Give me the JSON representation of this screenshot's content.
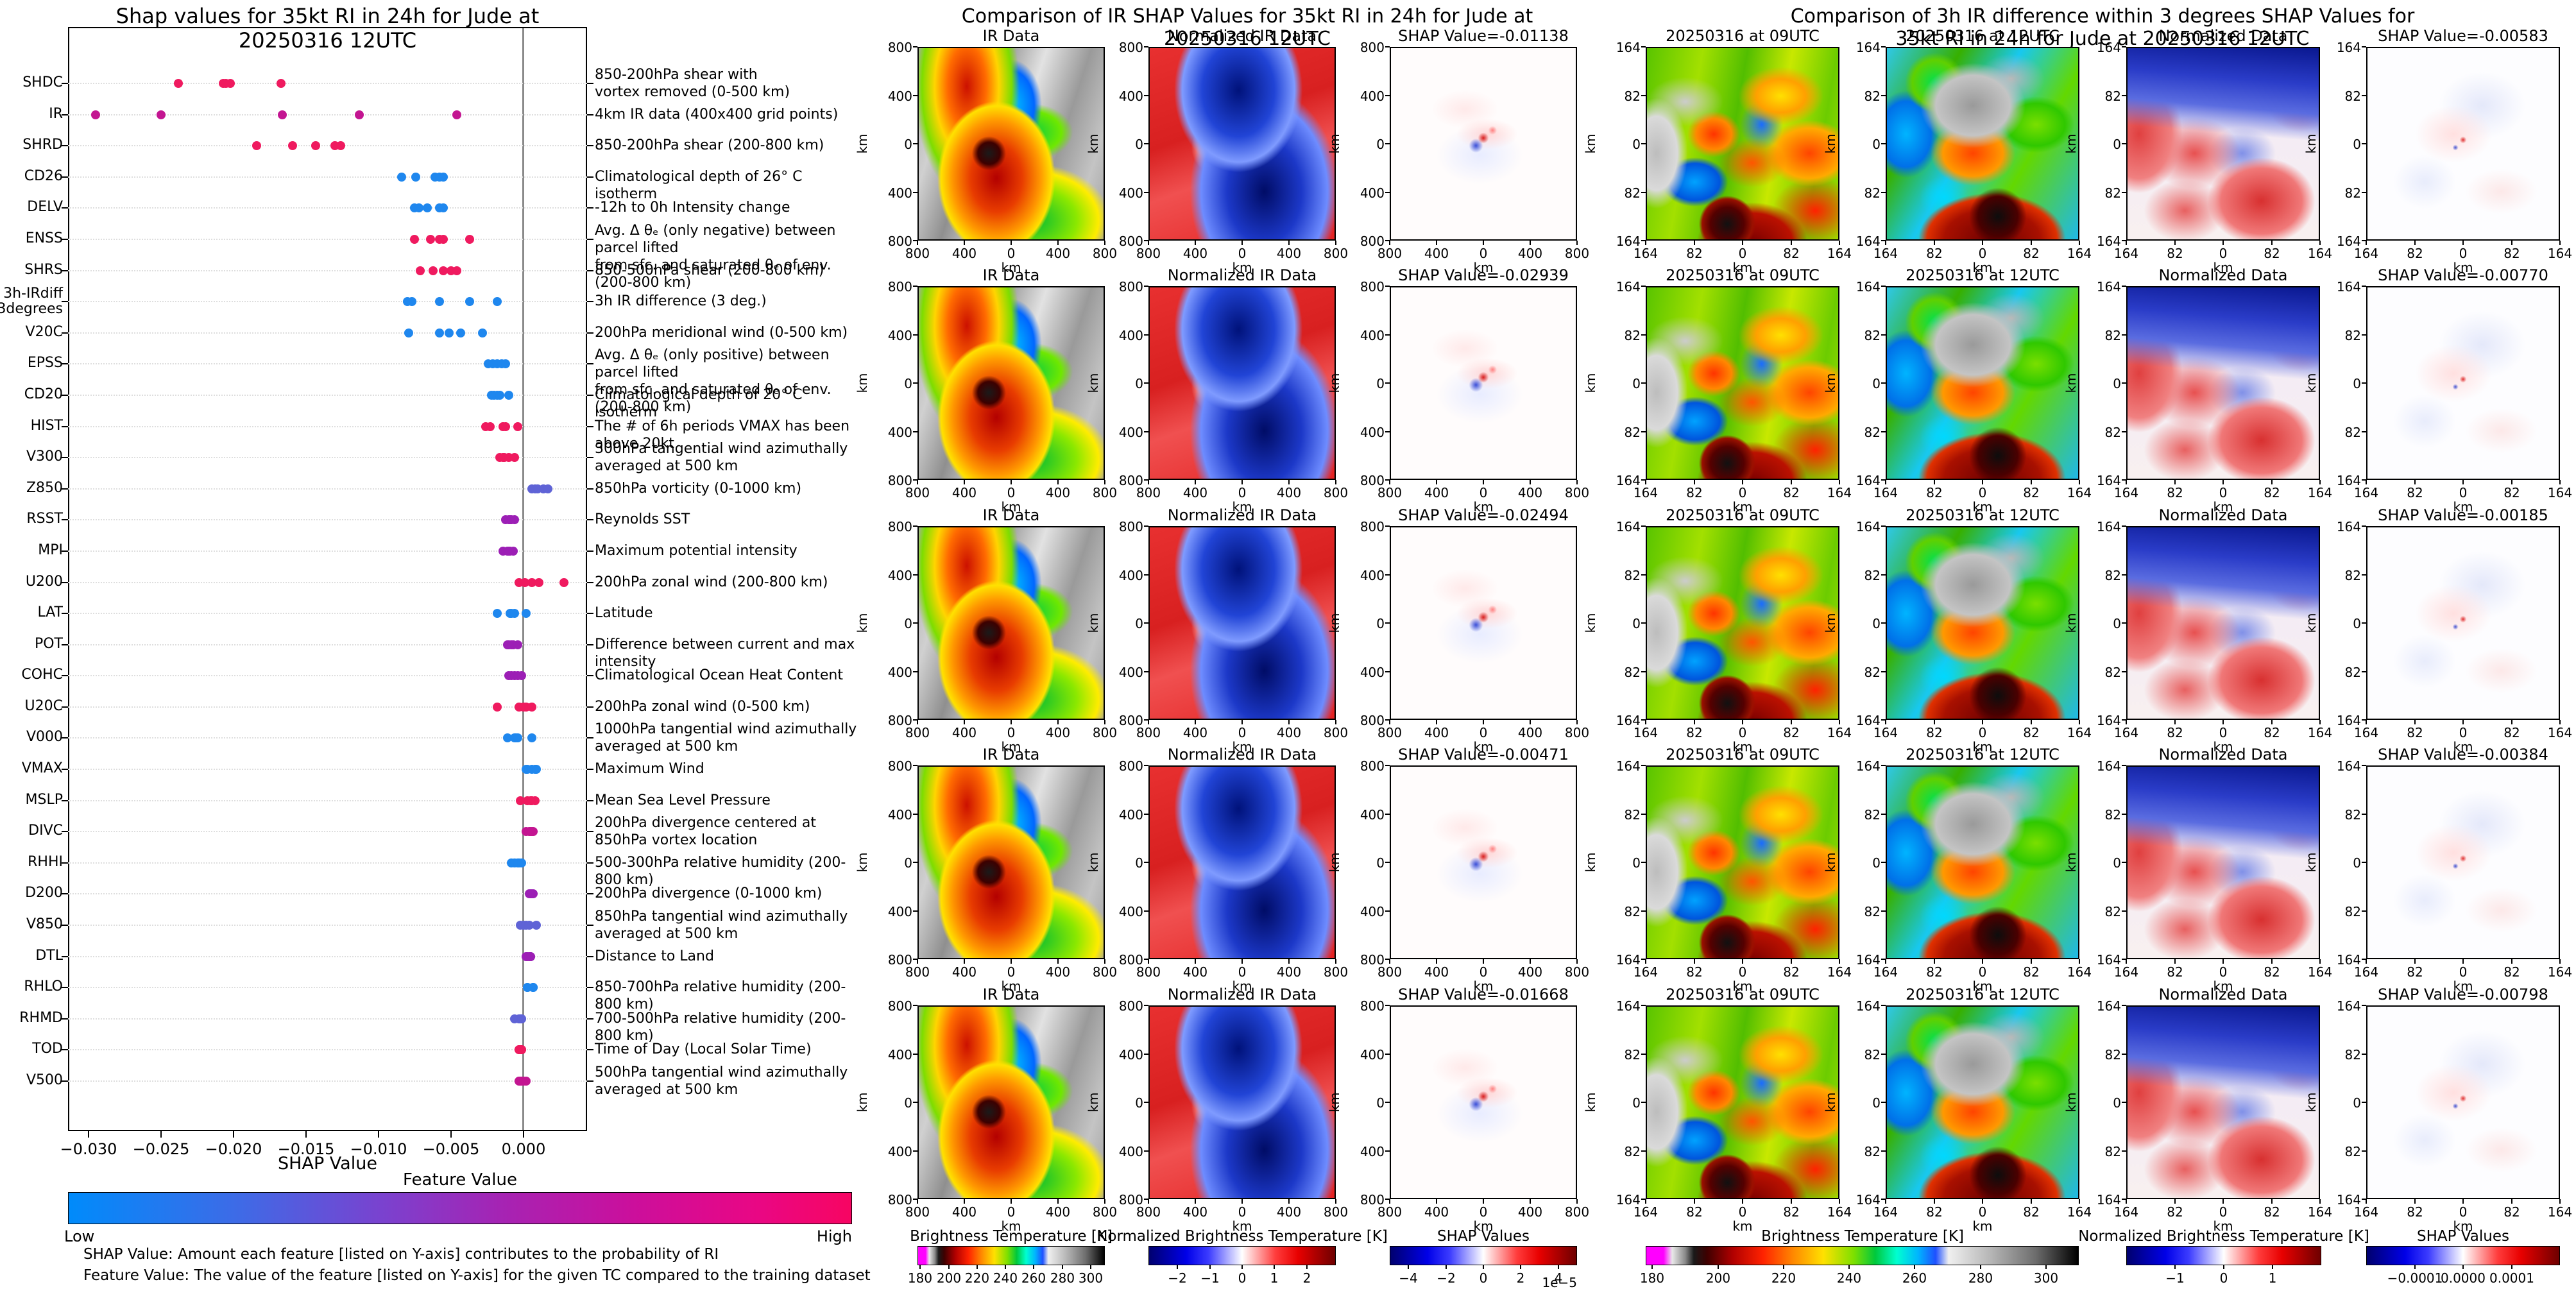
{
  "chart_data": {
    "type": "scatter",
    "title": "Shap values for 35kt RI in 24h for Jude at 20250316 12UTC",
    "xlabel": "SHAP Value",
    "xlim": [
      -0.0314,
      0.0044
    ],
    "x_ticks": [
      {
        "label": "−0.030",
        "value": -0.03
      },
      {
        "label": "−0.025",
        "value": -0.025
      },
      {
        "label": "−0.020",
        "value": -0.02
      },
      {
        "label": "−0.015",
        "value": -0.015
      },
      {
        "label": "−0.010",
        "value": -0.01
      },
      {
        "label": "−0.005",
        "value": -0.005
      },
      {
        "label": "0.000",
        "value": 0.0
      }
    ],
    "grid": "dotted-horizontal",
    "zero_line_color": "#8a8a8a",
    "features": [
      {
        "label": "SHDC",
        "desc": "850-200hPa shear with\nvortex removed (0-500 km)",
        "color": "#ef1a5f",
        "shap_values": [
          -0.0238,
          -0.0207,
          -0.0205,
          -0.0202,
          -0.0167
        ]
      },
      {
        "label": "IR",
        "desc": "4km IR data (400x400 grid points)",
        "color": "#c31591",
        "shap_values": [
          -0.0295,
          -0.025,
          -0.0166,
          -0.0113,
          -0.0046
        ]
      },
      {
        "label": "SHRD",
        "desc": "850-200hPa shear (200-800 km)",
        "color": "#ef1a5f",
        "shap_values": [
          -0.0184,
          -0.0159,
          -0.0143,
          -0.013,
          -0.0126
        ]
      },
      {
        "label": "CD26",
        "desc": "Climatological depth of 26° C isotherm",
        "color": "#1f87ee",
        "shap_values": [
          -0.0084,
          -0.0074,
          -0.0061,
          -0.0058,
          -0.0055
        ]
      },
      {
        "label": "DELV",
        "desc": "-12h to 0h Intensity change",
        "color": "#1f87ee",
        "shap_values": [
          -0.0075,
          -0.0072,
          -0.0066,
          -0.0058,
          -0.0055
        ]
      },
      {
        "label": "ENSS",
        "desc": "Avg. Δ θₑ (only negative) between parcel lifted\nfrom sfc. and saturated θₑ of env. (200-800 km)",
        "color": "#ef1a5f",
        "shap_values": [
          -0.0075,
          -0.0064,
          -0.0058,
          -0.0055,
          -0.0037
        ]
      },
      {
        "label": "SHRS",
        "desc": "850-500hPa shear (200-800 km)",
        "color": "#ef1a5f",
        "shap_values": [
          -0.0071,
          -0.0062,
          -0.0055,
          -0.005,
          -0.0046
        ]
      },
      {
        "label": "3h-IRdiff\n3degrees",
        "desc": "3h IR difference (3 deg.)",
        "color": "#1f87ee",
        "shap_values": [
          -0.008,
          -0.0077,
          -0.0058,
          -0.0037,
          -0.0018
        ]
      },
      {
        "label": "V20C",
        "desc": "200hPa meridional wind (0-500 km)",
        "color": "#1f87ee",
        "shap_values": [
          -0.0079,
          -0.0058,
          -0.0051,
          -0.0043,
          -0.0028
        ]
      },
      {
        "label": "EPSS",
        "desc": "Avg. Δ θₑ (only positive) between parcel lifted\nfrom sfc. and saturated θₑ of env. (200-800 km)",
        "color": "#1f87ee",
        "shap_values": [
          -0.0024,
          -0.0021,
          -0.0018,
          -0.0015,
          -0.0012
        ]
      },
      {
        "label": "CD20",
        "desc": "Climatological depth of 20° C isotherm",
        "color": "#1f87ee",
        "shap_values": [
          -0.0022,
          -0.002,
          -0.0018,
          -0.0016,
          -0.001
        ]
      },
      {
        "label": "HIST",
        "desc": "The # of 6h periods VMAX has been above 20kt",
        "color": "#ef1a5f",
        "shap_values": [
          -0.0026,
          -0.0023,
          -0.0014,
          -0.0012,
          -0.0004
        ]
      },
      {
        "label": "V300",
        "desc": "300hPa tangential wind azimuthally\naveraged at 500 km",
        "color": "#ef1a5f",
        "shap_values": [
          -0.0016,
          -0.0014,
          -0.0013,
          -0.001,
          -0.0006
        ]
      },
      {
        "label": "Z850",
        "desc": "850hPa vorticity (0-1000 km)",
        "color": "#5f63d6",
        "shap_values": [
          0.0006,
          0.0008,
          0.001,
          0.0014,
          0.0017
        ]
      },
      {
        "label": "RSST",
        "desc": "Reynolds SST",
        "color": "#9c1fb5",
        "shap_values": [
          -0.0012,
          -0.001,
          -0.0009,
          -0.0008,
          -0.0006
        ]
      },
      {
        "label": "MPI",
        "desc": "Maximum potential intensity",
        "color": "#9c1fb5",
        "shap_values": [
          -0.0014,
          -0.0011,
          -0.001,
          -0.0009,
          -0.0007
        ]
      },
      {
        "label": "U200",
        "desc": "200hPa zonal wind (200-800 km)",
        "color": "#ef1a5f",
        "shap_values": [
          -0.0003,
          0.0001,
          0.0006,
          0.0011,
          0.0028
        ]
      },
      {
        "label": "LAT",
        "desc": "Latitude",
        "color": "#1f87ee",
        "shap_values": [
          -0.0018,
          -0.0009,
          -0.0008,
          -0.0006,
          0.0002
        ]
      },
      {
        "label": "POT",
        "desc": "Difference between current and max intensity",
        "color": "#9c1fb5",
        "shap_values": [
          -0.0011,
          -0.001,
          -0.0008,
          -0.0007,
          -0.0004
        ]
      },
      {
        "label": "COHC",
        "desc": "Climatological Ocean Heat Content",
        "color": "#9c1fb5",
        "shap_values": [
          -0.001,
          -0.0008,
          -0.0006,
          -0.0004,
          -0.0001
        ]
      },
      {
        "label": "U20C",
        "desc": "200hPa zonal wind (0-500 km)",
        "color": "#ef1a5f",
        "shap_values": [
          -0.0018,
          -0.0003,
          0.0,
          0.0002,
          0.0006
        ]
      },
      {
        "label": "V000",
        "desc": "1000hPa tangential wind azimuthally\naveraged at 500 km",
        "color": "#1f87ee",
        "shap_values": [
          -0.0011,
          -0.0006,
          -0.0005,
          -0.0004,
          0.0006
        ]
      },
      {
        "label": "VMAX",
        "desc": "Maximum Wind",
        "color": "#1f87ee",
        "shap_values": [
          0.0002,
          0.0003,
          0.0006,
          0.0008,
          0.0009
        ]
      },
      {
        "label": "MSLP",
        "desc": "Mean Sea Level Pressure",
        "color": "#ef1a5f",
        "shap_values": [
          -0.0002,
          0.0003,
          0.0005,
          0.0006,
          0.0008
        ]
      },
      {
        "label": "DIVC",
        "desc": "200hPa divergence centered at\n850hPa vortex location",
        "color": "#c31591",
        "shap_values": [
          0.0002,
          0.0004,
          0.0005,
          0.0006,
          0.0007
        ]
      },
      {
        "label": "RHHI",
        "desc": "500-300hPa relative humidity (200-800 km)",
        "color": "#1f87ee",
        "shap_values": [
          -0.0008,
          -0.0006,
          -0.0004,
          -0.0003,
          -0.0001
        ]
      },
      {
        "label": "D200",
        "desc": "200hPa divergence (0-1000 km)",
        "color": "#9c1fb5",
        "shap_values": [
          0.0004,
          0.0005,
          0.0005,
          0.0006,
          0.0007
        ]
      },
      {
        "label": "V850",
        "desc": "850hPa tangential wind azimuthally\naveraged at 500 km",
        "color": "#5f63d6",
        "shap_values": [
          -0.0002,
          0.0,
          0.0002,
          0.0004,
          0.0009
        ]
      },
      {
        "label": "DTL",
        "desc": "Distance to Land",
        "color": "#9c1fb5",
        "shap_values": [
          0.0002,
          0.0003,
          0.0004,
          0.0005,
          0.0005
        ]
      },
      {
        "label": "RHLO",
        "desc": "850-700hPa relative humidity (200-800 km)",
        "color": "#1f87ee",
        "shap_values": [
          0.0003,
          0.0003,
          0.0007,
          0.0007,
          0.0007
        ]
      },
      {
        "label": "RHMD",
        "desc": "700-500hPa relative humidity (200-800 km)",
        "color": "#5f63d6",
        "shap_values": [
          -0.0006,
          -0.0003,
          -0.0002,
          -0.0001,
          -0.0001
        ]
      },
      {
        "label": "TOD",
        "desc": "Time of Day (Local Solar Time)",
        "color": "#ef1a5f",
        "shap_values": [
          -0.0003,
          -0.0003,
          -0.0002,
          -0.0001,
          -0.0001
        ]
      },
      {
        "label": "V500",
        "desc": "500hPa tangential wind azimuthally\naveraged at 500 km",
        "color": "#c31591",
        "shap_values": [
          -0.0003,
          -0.0002,
          -0.0001,
          0.0,
          0.0002
        ]
      }
    ],
    "colorbar": {
      "title": "Feature Value",
      "low": "Low",
      "high": "High",
      "left_color": "#008bfb",
      "right_color": "#f70562"
    },
    "footnotes": [
      "SHAP Value: Amount each feature [listed on Y-axis] contributes to the probability of RI",
      "Feature Value: The value of the feature [listed on Y-axis] for the given TC compared to the training dataset"
    ]
  },
  "ir_section": {
    "title": "Comparison of IR SHAP Values for 35kt RI in 24h for Jude at 20250316 12UTC",
    "columns": [
      "IR Data",
      "Normalized IR Data"
    ],
    "rows": [
      {
        "shap_title": "SHAP Value=-0.01138"
      },
      {
        "shap_title": "SHAP Value=-0.02939"
      },
      {
        "shap_title": "SHAP Value=-0.02494"
      },
      {
        "shap_title": "SHAP Value=-0.00471"
      },
      {
        "shap_title": "SHAP Value=-0.01668"
      }
    ],
    "axis_ticks": [
      "800",
      "400",
      "0",
      "400",
      "800"
    ],
    "axis_unit": "km",
    "colorbars": [
      {
        "title": "Brightness Temperature [K]",
        "style": "ir",
        "range": [
          178,
          310
        ],
        "ticks": [
          {
            "label": "180",
            "value": 180
          },
          {
            "label": "200",
            "value": 200
          },
          {
            "label": "220",
            "value": 220
          },
          {
            "label": "240",
            "value": 240
          },
          {
            "label": "260",
            "value": 260
          },
          {
            "label": "280",
            "value": 280
          },
          {
            "label": "300",
            "value": 300
          }
        ]
      },
      {
        "title": "Normalized Brightness Temperature [K]",
        "style": "seismic",
        "range": [
          -2.9,
          2.9
        ],
        "ticks": [
          {
            "label": "−2",
            "value": -2
          },
          {
            "label": "−1",
            "value": -1
          },
          {
            "label": "0",
            "value": 0
          },
          {
            "label": "1",
            "value": 1
          },
          {
            "label": "2",
            "value": 2
          }
        ]
      },
      {
        "title": "SHAP Values",
        "style": "seismic",
        "range": [
          -5,
          5
        ],
        "ticks": [
          {
            "label": "−4",
            "value": -4
          },
          {
            "label": "−2",
            "value": -2
          },
          {
            "label": "0",
            "value": 0
          },
          {
            "label": "2",
            "value": 2
          },
          {
            "label": "4",
            "value": 4
          }
        ],
        "exponent": "1e−5"
      }
    ]
  },
  "irdiff_section": {
    "title": "Comparison of 3h IR difference within 3 degrees SHAP Values for 35kt RI in 24h for Jude at 20250316 12UTC",
    "columns": [
      "20250316 at 09UTC",
      "20250316 at 12UTC",
      "Normalized Data"
    ],
    "rows": [
      {
        "shap_title": "SHAP Value=-0.00583"
      },
      {
        "shap_title": "SHAP Value=-0.00770"
      },
      {
        "shap_title": "SHAP Value=-0.00185"
      },
      {
        "shap_title": "SHAP Value=-0.00384"
      },
      {
        "shap_title": "SHAP Value=-0.00798"
      }
    ],
    "axis_ticks": [
      "164",
      "82",
      "0",
      "82",
      "164"
    ],
    "axis_unit": "km",
    "colorbars": [
      {
        "title": "Brightness Temperature [K]",
        "style": "ir",
        "range": [
          178,
          310
        ],
        "ticks": [
          {
            "label": "180",
            "value": 180
          },
          {
            "label": "200",
            "value": 200
          },
          {
            "label": "220",
            "value": 220
          },
          {
            "label": "240",
            "value": 240
          },
          {
            "label": "260",
            "value": 260
          },
          {
            "label": "280",
            "value": 280
          },
          {
            "label": "300",
            "value": 300
          }
        ]
      },
      {
        "title": "Normalized Brightness Temperature [K]",
        "style": "seismic",
        "range": [
          -2,
          2
        ],
        "ticks": [
          {
            "label": "−1",
            "value": -1
          },
          {
            "label": "0",
            "value": 0
          },
          {
            "label": "1",
            "value": 1
          }
        ]
      },
      {
        "title": "SHAP Values",
        "style": "seismic",
        "range": [
          -0.0002,
          0.0002
        ],
        "ticks": [
          {
            "label": "−0.0001",
            "value": -0.0001
          },
          {
            "label": "0.0000",
            "value": 0.0
          },
          {
            "label": "0.0001",
            "value": 0.0001
          }
        ]
      }
    ]
  }
}
